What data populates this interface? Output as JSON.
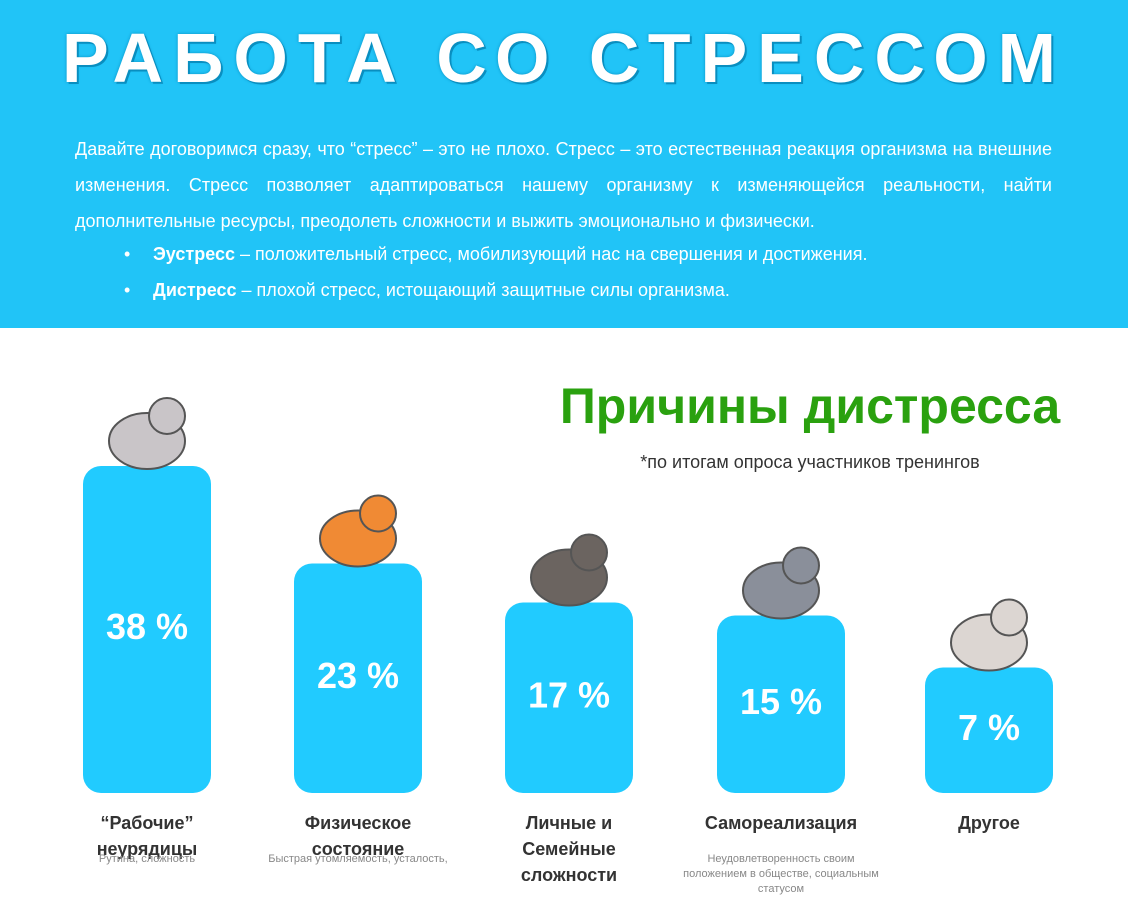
{
  "header": {
    "title": "РАБОТА СО СТРЕССОМ",
    "paragraph": "Давайте договоримся сразу, что “стресс” – это не плохо. Стресс – это естественная реакция организма на внешние изменения. Стресс позволяет адаптироваться нашему организму к изменяющейся реальности, найти дополнительные ресурсы, преодолеть сложности и выжить эмоционально и физически.",
    "bullets": [
      {
        "term": "Эустресс",
        "text": "– положительный стресс, мобилизующий нас на свершения и достижения."
      },
      {
        "term": "Дистресс",
        "text": "– плохой стресс, истощающий защитные силы организма."
      }
    ]
  },
  "chart_data": {
    "type": "bar",
    "title": "Причины дистресса",
    "subtitle": "*по итогам опроса участников тренингов",
    "categories": [
      "“Рабочие” неурядицы",
      "Физическое состояние",
      "Личные и Семейные сложности",
      "Самореализация",
      "Другое"
    ],
    "descriptions": [
      "Рутина, сложность",
      "Быстрая утомляемость, усталость,",
      null,
      "Неудовлетворенность своим положением в обществе, социальным статусом",
      null
    ],
    "values": [
      38,
      23,
      17,
      15,
      7
    ],
    "value_labels": [
      "38 %",
      "23 %",
      "17 %",
      "15 %",
      "7 %"
    ],
    "color": "#21cbff"
  }
}
